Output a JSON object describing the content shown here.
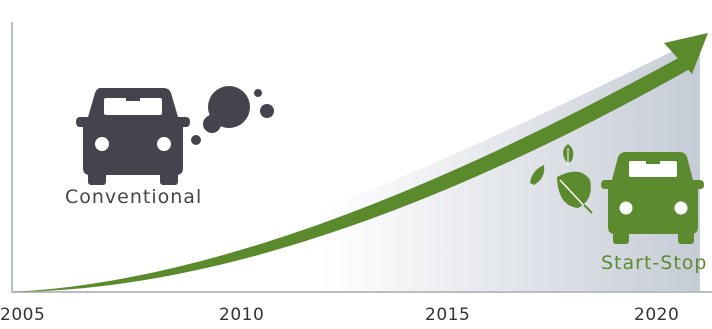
{
  "colors": {
    "conventional": "#45434d",
    "start_stop": "#5c8a2e",
    "arrow": "#5a8a2b",
    "axis": "#b9bec6",
    "gradient_light": "#ffffff",
    "gradient_dark": "#c6ccd6"
  },
  "x_axis": {
    "labels": [
      "2005",
      "2010",
      "2015",
      "2020"
    ]
  },
  "cars": {
    "conventional": {
      "label": "Conventional",
      "icon": "car-icon",
      "emission_icon": "exhaust-smoke-icon"
    },
    "start_stop": {
      "label": "Start-Stop",
      "icon": "car-icon",
      "emission_icon": "leaf-icon"
    }
  },
  "trend": {
    "icon": "growth-arrow-icon"
  }
}
